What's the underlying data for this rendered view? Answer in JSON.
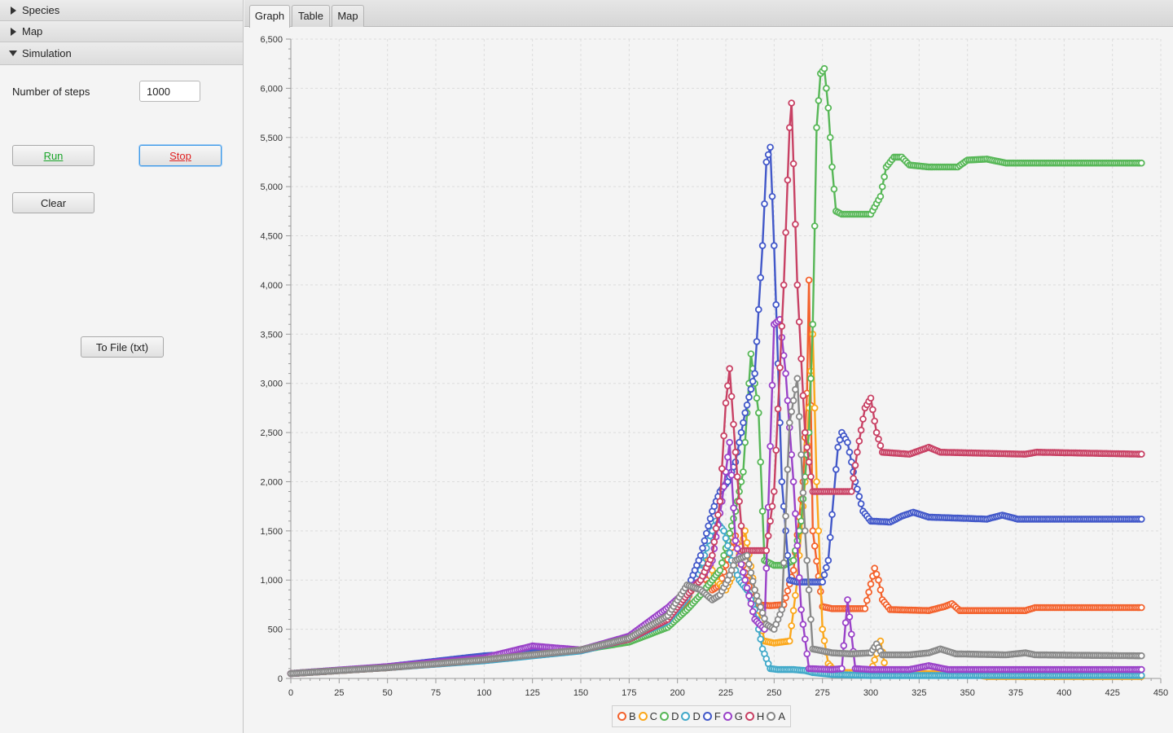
{
  "accordion": {
    "species": "Species",
    "map": "Map",
    "simulation": "Simulation"
  },
  "simulation": {
    "steps_label": "Number of steps",
    "steps_value": "1000",
    "run_label": "Run",
    "stop_label": "Stop",
    "clear_label": "Clear",
    "tofile_label": "To File (txt)"
  },
  "tabs": [
    {
      "label": "Graph"
    },
    {
      "label": "Table"
    },
    {
      "label": "Map"
    }
  ],
  "chart_data": {
    "type": "line",
    "xlim": [
      0,
      450
    ],
    "ylim": [
      0,
      6500
    ],
    "x_ticks": [
      0,
      25,
      50,
      75,
      100,
      125,
      150,
      175,
      200,
      225,
      250,
      275,
      300,
      325,
      350,
      375,
      400,
      425,
      450
    ],
    "x_tick_labels": [
      "0",
      "25",
      "50",
      "75",
      "100",
      "125",
      "150",
      "175",
      "200",
      "225",
      "250",
      "275",
      "300",
      "325",
      "350",
      "375",
      "400",
      "425",
      "450"
    ],
    "y_ticks": [
      0,
      500,
      1000,
      1500,
      2000,
      2500,
      3000,
      3500,
      4000,
      4500,
      5000,
      5500,
      6000,
      6500
    ],
    "y_tick_labels": [
      "0",
      "500",
      "1,000",
      "1,500",
      "2,000",
      "2,500",
      "3,000",
      "3,500",
      "4,000",
      "4,500",
      "5,000",
      "5,500",
      "6,000",
      "6,500"
    ],
    "grid": true,
    "legend_position": "bottom",
    "series": [
      {
        "name": "B",
        "color": "#f3622d",
        "points": [
          [
            0,
            50
          ],
          [
            50,
            110
          ],
          [
            100,
            190
          ],
          [
            150,
            290
          ],
          [
            175,
            390
          ],
          [
            195,
            560
          ],
          [
            205,
            800
          ],
          [
            212,
            1100
          ],
          [
            218,
            900
          ],
          [
            222,
            950
          ],
          [
            225,
            1150
          ],
          [
            230,
            1450
          ],
          [
            236,
            1000
          ],
          [
            240,
            750
          ],
          [
            248,
            740
          ],
          [
            255,
            750
          ],
          [
            260,
            1100
          ],
          [
            265,
            2000
          ],
          [
            267,
            2900
          ],
          [
            268,
            4050
          ],
          [
            270,
            1500
          ],
          [
            275,
            730
          ],
          [
            280,
            710
          ],
          [
            290,
            710
          ],
          [
            297,
            710
          ],
          [
            300,
            960
          ],
          [
            302,
            1120
          ],
          [
            304,
            1000
          ],
          [
            306,
            800
          ],
          [
            310,
            700
          ],
          [
            330,
            690
          ],
          [
            338,
            730
          ],
          [
            342,
            760
          ],
          [
            346,
            690
          ],
          [
            380,
            690
          ],
          [
            385,
            720
          ],
          [
            440,
            720
          ]
        ]
      },
      {
        "name": "C",
        "color": "#fba71b",
        "points": [
          [
            0,
            50
          ],
          [
            50,
            110
          ],
          [
            100,
            190
          ],
          [
            150,
            290
          ],
          [
            175,
            420
          ],
          [
            195,
            600
          ],
          [
            205,
            850
          ],
          [
            212,
            1100
          ],
          [
            216,
            1200
          ],
          [
            220,
            1000
          ],
          [
            225,
            900
          ],
          [
            230,
            1100
          ],
          [
            235,
            1500
          ],
          [
            240,
            900
          ],
          [
            245,
            380
          ],
          [
            250,
            360
          ],
          [
            258,
            380
          ],
          [
            262,
            1000
          ],
          [
            266,
            2000
          ],
          [
            270,
            3500
          ],
          [
            272,
            2000
          ],
          [
            275,
            500
          ],
          [
            278,
            150
          ],
          [
            282,
            60
          ],
          [
            300,
            60
          ],
          [
            305,
            380
          ],
          [
            308,
            50
          ],
          [
            350,
            50
          ],
          [
            360,
            20
          ],
          [
            440,
            20
          ]
        ]
      },
      {
        "name": "D",
        "color": "#57b757",
        "points": [
          [
            0,
            50
          ],
          [
            50,
            110
          ],
          [
            100,
            190
          ],
          [
            150,
            290
          ],
          [
            175,
            370
          ],
          [
            195,
            520
          ],
          [
            205,
            700
          ],
          [
            212,
            850
          ],
          [
            218,
            1000
          ],
          [
            222,
            1100
          ],
          [
            226,
            1400
          ],
          [
            230,
            1700
          ],
          [
            234,
            2100
          ],
          [
            238,
            3300
          ],
          [
            242,
            2700
          ],
          [
            245,
            1200
          ],
          [
            250,
            1150
          ],
          [
            255,
            1150
          ],
          [
            260,
            1200
          ],
          [
            264,
            1600
          ],
          [
            268,
            2500
          ],
          [
            270,
            3600
          ],
          [
            272,
            5600
          ],
          [
            274,
            6150
          ],
          [
            276,
            6200
          ],
          [
            278,
            5800
          ],
          [
            280,
            5200
          ],
          [
            282,
            4750
          ],
          [
            285,
            4720
          ],
          [
            295,
            4720
          ],
          [
            300,
            4720
          ],
          [
            305,
            4900
          ],
          [
            308,
            5200
          ],
          [
            312,
            5300
          ],
          [
            316,
            5300
          ],
          [
            320,
            5220
          ],
          [
            330,
            5200
          ],
          [
            345,
            5200
          ],
          [
            350,
            5270
          ],
          [
            360,
            5280
          ],
          [
            370,
            5240
          ],
          [
            440,
            5240
          ]
        ]
      },
      {
        "name": "D",
        "color": "#41a9c9",
        "points": [
          [
            0,
            50
          ],
          [
            50,
            110
          ],
          [
            100,
            180
          ],
          [
            150,
            280
          ],
          [
            175,
            400
          ],
          [
            195,
            580
          ],
          [
            205,
            820
          ],
          [
            212,
            1100
          ],
          [
            216,
            1400
          ],
          [
            220,
            1600
          ],
          [
            224,
            1500
          ],
          [
            228,
            1200
          ],
          [
            232,
            1000
          ],
          [
            236,
            900
          ],
          [
            240,
            700
          ],
          [
            244,
            300
          ],
          [
            248,
            100
          ],
          [
            252,
            90
          ],
          [
            260,
            90
          ],
          [
            266,
            80
          ],
          [
            270,
            60
          ],
          [
            280,
            40
          ],
          [
            300,
            30
          ],
          [
            440,
            30
          ]
        ]
      },
      {
        "name": "F",
        "color": "#4258c9",
        "points": [
          [
            0,
            50
          ],
          [
            50,
            120
          ],
          [
            100,
            230
          ],
          [
            150,
            290
          ],
          [
            175,
            420
          ],
          [
            195,
            620
          ],
          [
            205,
            900
          ],
          [
            212,
            1250
          ],
          [
            218,
            1700
          ],
          [
            222,
            1900
          ],
          [
            226,
            2000
          ],
          [
            230,
            2200
          ],
          [
            235,
            2700
          ],
          [
            240,
            3100
          ],
          [
            244,
            4400
          ],
          [
            246,
            5250
          ],
          [
            248,
            5400
          ],
          [
            250,
            4400
          ],
          [
            254,
            2000
          ],
          [
            258,
            1000
          ],
          [
            262,
            980
          ],
          [
            275,
            980
          ],
          [
            278,
            1200
          ],
          [
            281,
            1900
          ],
          [
            283,
            2350
          ],
          [
            285,
            2500
          ],
          [
            288,
            2400
          ],
          [
            292,
            2000
          ],
          [
            296,
            1700
          ],
          [
            300,
            1600
          ],
          [
            310,
            1590
          ],
          [
            316,
            1650
          ],
          [
            322,
            1690
          ],
          [
            330,
            1640
          ],
          [
            360,
            1620
          ],
          [
            368,
            1660
          ],
          [
            376,
            1620
          ],
          [
            440,
            1620
          ]
        ]
      },
      {
        "name": "G",
        "color": "#9a42c8",
        "points": [
          [
            0,
            50
          ],
          [
            50,
            120
          ],
          [
            100,
            210
          ],
          [
            125,
            330
          ],
          [
            150,
            290
          ],
          [
            175,
            430
          ],
          [
            195,
            720
          ],
          [
            205,
            900
          ],
          [
            212,
            1000
          ],
          [
            218,
            1200
          ],
          [
            223,
            1800
          ],
          [
            227,
            2400
          ],
          [
            230,
            1400
          ],
          [
            235,
            1000
          ],
          [
            240,
            600
          ],
          [
            245,
            500
          ],
          [
            250,
            3600
          ],
          [
            253,
            3650
          ],
          [
            256,
            3100
          ],
          [
            260,
            2000
          ],
          [
            264,
            700
          ],
          [
            268,
            100
          ],
          [
            280,
            90
          ],
          [
            285,
            100
          ],
          [
            288,
            800
          ],
          [
            292,
            100
          ],
          [
            300,
            90
          ],
          [
            320,
            90
          ],
          [
            330,
            130
          ],
          [
            340,
            90
          ],
          [
            440,
            90
          ]
        ]
      },
      {
        "name": "H",
        "color": "#c84164",
        "points": [
          [
            0,
            50
          ],
          [
            50,
            110
          ],
          [
            100,
            190
          ],
          [
            150,
            290
          ],
          [
            175,
            400
          ],
          [
            195,
            600
          ],
          [
            205,
            850
          ],
          [
            212,
            1000
          ],
          [
            218,
            1250
          ],
          [
            222,
            1800
          ],
          [
            225,
            2800
          ],
          [
            227,
            3150
          ],
          [
            230,
            2300
          ],
          [
            234,
            1300
          ],
          [
            240,
            1300
          ],
          [
            246,
            1300
          ],
          [
            250,
            1900
          ],
          [
            255,
            4000
          ],
          [
            258,
            5600
          ],
          [
            259,
            5850
          ],
          [
            262,
            4000
          ],
          [
            266,
            2500
          ],
          [
            270,
            1900
          ],
          [
            280,
            1900
          ],
          [
            290,
            1900
          ],
          [
            293,
            2300
          ],
          [
            297,
            2750
          ],
          [
            300,
            2850
          ],
          [
            303,
            2500
          ],
          [
            306,
            2300
          ],
          [
            320,
            2280
          ],
          [
            330,
            2350
          ],
          [
            336,
            2300
          ],
          [
            380,
            2280
          ],
          [
            386,
            2300
          ],
          [
            440,
            2280
          ]
        ]
      },
      {
        "name": "A",
        "color": "#888888",
        "points": [
          [
            0,
            50
          ],
          [
            50,
            110
          ],
          [
            100,
            190
          ],
          [
            150,
            290
          ],
          [
            175,
            410
          ],
          [
            195,
            640
          ],
          [
            205,
            950
          ],
          [
            212,
            900
          ],
          [
            218,
            800
          ],
          [
            222,
            850
          ],
          [
            226,
            1000
          ],
          [
            230,
            1200
          ],
          [
            236,
            1250
          ],
          [
            240,
            900
          ],
          [
            246,
            550
          ],
          [
            250,
            500
          ],
          [
            254,
            700
          ],
          [
            258,
            2600
          ],
          [
            262,
            3050
          ],
          [
            266,
            1500
          ],
          [
            270,
            300
          ],
          [
            280,
            260
          ],
          [
            290,
            250
          ],
          [
            300,
            260
          ],
          [
            303,
            350
          ],
          [
            306,
            240
          ],
          [
            320,
            240
          ],
          [
            330,
            260
          ],
          [
            336,
            300
          ],
          [
            344,
            250
          ],
          [
            370,
            240
          ],
          [
            380,
            260
          ],
          [
            385,
            240
          ],
          [
            440,
            230
          ]
        ]
      }
    ]
  }
}
